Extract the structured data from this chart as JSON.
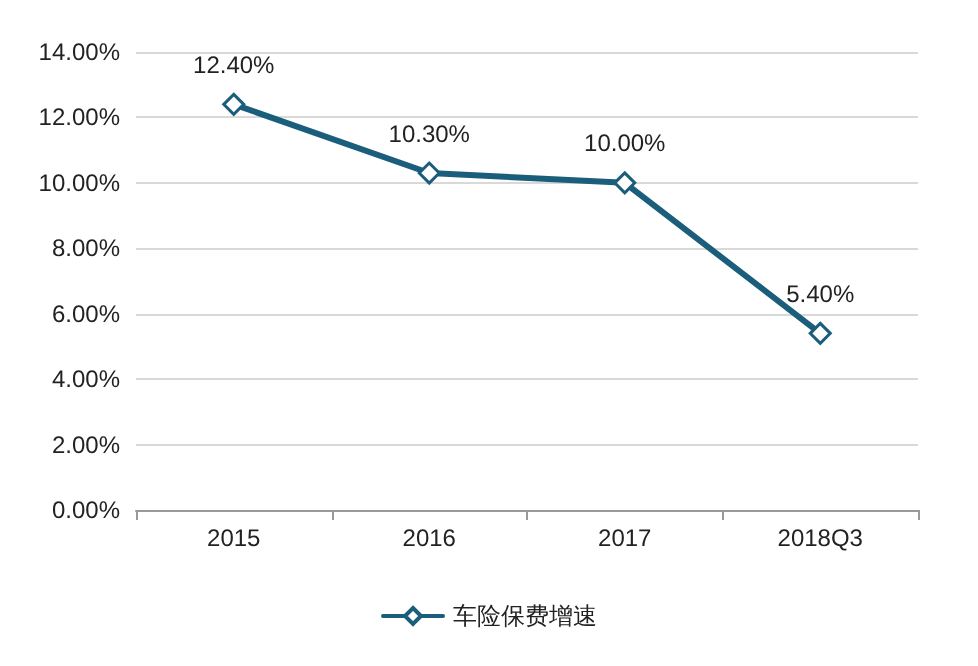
{
  "chart_data": {
    "type": "line",
    "categories": [
      "2015",
      "2016",
      "2017",
      "2018Q3"
    ],
    "series": [
      {
        "name": "车险保费增速",
        "color": "#1b5e7b",
        "values": [
          12.4,
          10.3,
          10.0,
          5.4
        ],
        "value_labels": [
          "12.40%",
          "10.30%",
          "10.00%",
          "5.40%"
        ]
      }
    ],
    "ylim": [
      0,
      14
    ],
    "yticks": [
      {
        "value": 0,
        "label": "0.00%"
      },
      {
        "value": 2,
        "label": "2.00%"
      },
      {
        "value": 4,
        "label": "4.00%"
      },
      {
        "value": 6,
        "label": "6.00%"
      },
      {
        "value": 8,
        "label": "8.00%"
      },
      {
        "value": 10,
        "label": "10.00%"
      },
      {
        "value": 12,
        "label": "12.00%"
      },
      {
        "value": 14,
        "label": "14.00%"
      }
    ],
    "grid": "y",
    "legend": "bottom",
    "marker": "diamond",
    "line_style": "solid"
  }
}
